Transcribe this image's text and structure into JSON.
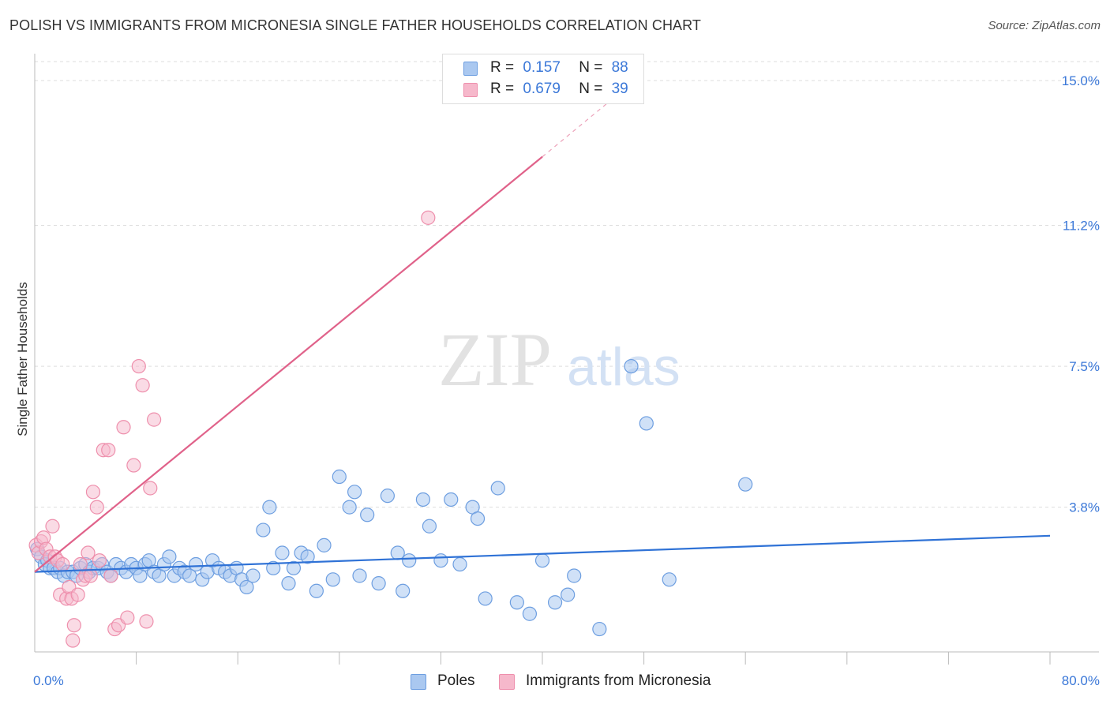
{
  "header": {
    "title": "POLISH VS IMMIGRANTS FROM MICRONESIA SINGLE FATHER HOUSEHOLDS CORRELATION CHART",
    "source": "Source: ZipAtlas.com"
  },
  "watermark": {
    "zip": "ZIP",
    "atlas": "atlas"
  },
  "legend": {
    "rows": [
      {
        "r_label": "R =",
        "r_value": "0.157",
        "n_label": "N =",
        "n_value": "88"
      },
      {
        "r_label": "R =",
        "r_value": "0.679",
        "n_label": "N =",
        "n_value": "39"
      }
    ]
  },
  "bottom_legend": {
    "poles": "Poles",
    "micronesia": "Immigrants from Micronesia"
  },
  "colors": {
    "poles_fill": "#aac8f0",
    "poles_stroke": "#6d9ee0",
    "poles_line": "#2f72d6",
    "micro_fill": "#f6b8cb",
    "micro_stroke": "#ee8fac",
    "micro_line": "#e0628a",
    "tick_label": "#3b78d8",
    "grid": "#dddddd"
  },
  "chart_data": {
    "type": "scatter",
    "title": "POLISH VS IMMIGRANTS FROM MICRONESIA SINGLE FATHER HOUSEHOLDS CORRELATION CHART",
    "xlabel": "",
    "ylabel": "Single Father Households",
    "xlim": [
      0,
      80
    ],
    "ylim": [
      0,
      15.5
    ],
    "x_tick_labels": [
      "0.0%",
      "80.0%"
    ],
    "y_ticks": [
      3.8,
      7.5,
      11.2,
      15.0
    ],
    "y_tick_labels": [
      "3.8%",
      "7.5%",
      "11.2%",
      "15.0%"
    ],
    "grid": true,
    "legend_placement": "top-center",
    "series": [
      {
        "name": "Poles",
        "r": 0.157,
        "n": 88,
        "trend": {
          "x": [
            0,
            80
          ],
          "y": [
            2.1,
            3.05
          ]
        },
        "points": [
          [
            0.2,
            2.7
          ],
          [
            0.5,
            2.5
          ],
          [
            0.8,
            2.3
          ],
          [
            1.0,
            2.4
          ],
          [
            1.2,
            2.2
          ],
          [
            1.5,
            2.2
          ],
          [
            1.8,
            2.1
          ],
          [
            2.0,
            2.2
          ],
          [
            2.3,
            2.0
          ],
          [
            2.6,
            2.1
          ],
          [
            3.0,
            2.1
          ],
          [
            3.3,
            2.0
          ],
          [
            3.6,
            2.2
          ],
          [
            4.0,
            2.3
          ],
          [
            4.3,
            2.1
          ],
          [
            4.6,
            2.2
          ],
          [
            5.0,
            2.2
          ],
          [
            5.3,
            2.3
          ],
          [
            5.7,
            2.1
          ],
          [
            6.0,
            2.0
          ],
          [
            6.4,
            2.3
          ],
          [
            6.8,
            2.2
          ],
          [
            7.2,
            2.1
          ],
          [
            7.6,
            2.3
          ],
          [
            8.0,
            2.2
          ],
          [
            8.3,
            2.0
          ],
          [
            8.7,
            2.3
          ],
          [
            9.0,
            2.4
          ],
          [
            9.4,
            2.1
          ],
          [
            9.8,
            2.0
          ],
          [
            10.2,
            2.3
          ],
          [
            10.6,
            2.5
          ],
          [
            11.0,
            2.0
          ],
          [
            11.4,
            2.2
          ],
          [
            11.8,
            2.1
          ],
          [
            12.2,
            2.0
          ],
          [
            12.7,
            2.3
          ],
          [
            13.2,
            1.9
          ],
          [
            13.6,
            2.1
          ],
          [
            14.0,
            2.4
          ],
          [
            14.5,
            2.2
          ],
          [
            15.0,
            2.1
          ],
          [
            15.4,
            2.0
          ],
          [
            15.9,
            2.2
          ],
          [
            16.3,
            1.9
          ],
          [
            16.7,
            1.7
          ],
          [
            17.2,
            2.0
          ],
          [
            18.0,
            3.2
          ],
          [
            18.5,
            3.8
          ],
          [
            18.8,
            2.2
          ],
          [
            19.5,
            2.6
          ],
          [
            20.0,
            1.8
          ],
          [
            20.4,
            2.2
          ],
          [
            21.0,
            2.6
          ],
          [
            21.5,
            2.5
          ],
          [
            22.2,
            1.6
          ],
          [
            22.8,
            2.8
          ],
          [
            23.5,
            1.9
          ],
          [
            24.0,
            4.6
          ],
          [
            24.8,
            3.8
          ],
          [
            25.2,
            4.2
          ],
          [
            25.6,
            2.0
          ],
          [
            26.2,
            3.6
          ],
          [
            27.1,
            1.8
          ],
          [
            27.8,
            4.1
          ],
          [
            28.6,
            2.6
          ],
          [
            29.0,
            1.6
          ],
          [
            29.5,
            2.4
          ],
          [
            30.6,
            4.0
          ],
          [
            31.1,
            3.3
          ],
          [
            32.0,
            2.4
          ],
          [
            32.8,
            4.0
          ],
          [
            33.5,
            2.3
          ],
          [
            34.5,
            3.8
          ],
          [
            34.9,
            3.5
          ],
          [
            35.5,
            1.4
          ],
          [
            36.5,
            4.3
          ],
          [
            38.0,
            1.3
          ],
          [
            39.0,
            1.0
          ],
          [
            40.0,
            2.4
          ],
          [
            41.0,
            1.3
          ],
          [
            42.0,
            1.5
          ],
          [
            42.5,
            2.0
          ],
          [
            44.5,
            0.6
          ],
          [
            47.0,
            7.5
          ],
          [
            48.2,
            6.0
          ],
          [
            50.0,
            1.9
          ],
          [
            56.0,
            4.4
          ]
        ]
      },
      {
        "name": "Immigrants from Micronesia",
        "r": 0.679,
        "n": 39,
        "trend": {
          "x": [
            0,
            40
          ],
          "y": [
            2.1,
            13.0
          ],
          "x_dashed": [
            40,
            46
          ],
          "y_dashed": [
            13.0,
            14.65
          ]
        },
        "points": [
          [
            0.1,
            2.8
          ],
          [
            0.3,
            2.6
          ],
          [
            0.5,
            2.9
          ],
          [
            0.7,
            3.0
          ],
          [
            0.9,
            2.7
          ],
          [
            1.2,
            2.5
          ],
          [
            1.4,
            3.3
          ],
          [
            1.6,
            2.5
          ],
          [
            1.8,
            2.4
          ],
          [
            2.0,
            1.5
          ],
          [
            2.2,
            2.3
          ],
          [
            2.5,
            1.4
          ],
          [
            2.7,
            1.7
          ],
          [
            2.9,
            1.4
          ],
          [
            3.0,
            0.3
          ],
          [
            3.1,
            0.7
          ],
          [
            3.4,
            1.5
          ],
          [
            3.6,
            2.3
          ],
          [
            3.8,
            1.9
          ],
          [
            4.0,
            2.0
          ],
          [
            4.2,
            2.6
          ],
          [
            4.4,
            2.0
          ],
          [
            4.6,
            4.2
          ],
          [
            4.9,
            3.8
          ],
          [
            5.1,
            2.4
          ],
          [
            5.4,
            5.3
          ],
          [
            5.8,
            5.3
          ],
          [
            6.0,
            2.0
          ],
          [
            6.3,
            0.6
          ],
          [
            6.6,
            0.7
          ],
          [
            7.0,
            5.9
          ],
          [
            7.3,
            0.9
          ],
          [
            7.8,
            4.9
          ],
          [
            8.2,
            7.5
          ],
          [
            8.5,
            7.0
          ],
          [
            8.8,
            0.8
          ],
          [
            9.1,
            4.3
          ],
          [
            9.4,
            6.1
          ],
          [
            31.0,
            11.4
          ]
        ]
      }
    ]
  }
}
